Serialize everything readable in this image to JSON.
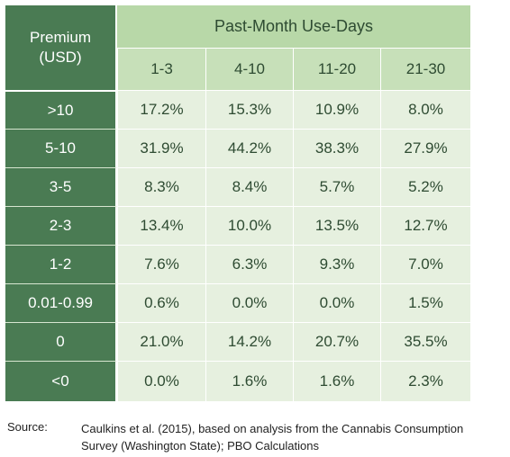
{
  "table": {
    "corner_line1": "Premium",
    "corner_line2": "(USD)",
    "group_header": "Past-Month Use-Days",
    "columns": [
      "1-3",
      "4-10",
      "11-20",
      "21-30"
    ],
    "rows": [
      {
        "label": ">10",
        "values": [
          "17.2%",
          "15.3%",
          "10.9%",
          "8.0%"
        ]
      },
      {
        "label": "5-10",
        "values": [
          "31.9%",
          "44.2%",
          "38.3%",
          "27.9%"
        ]
      },
      {
        "label": "3-5",
        "values": [
          "8.3%",
          "8.4%",
          "5.7%",
          "5.2%"
        ]
      },
      {
        "label": "2-3",
        "values": [
          "13.4%",
          "10.0%",
          "13.5%",
          "12.7%"
        ]
      },
      {
        "label": "1-2",
        "values": [
          "7.6%",
          "6.3%",
          "9.3%",
          "7.0%"
        ]
      },
      {
        "label": "0.01-0.99",
        "values": [
          "0.6%",
          "0.0%",
          "0.0%",
          "1.5%"
        ]
      },
      {
        "label": "0",
        "values": [
          "21.0%",
          "14.2%",
          "20.7%",
          "35.5%"
        ]
      },
      {
        "label": "<0",
        "values": [
          "0.0%",
          "1.6%",
          "1.6%",
          "2.3%"
        ]
      }
    ]
  },
  "source": {
    "label": "Source:",
    "line1": "Caulkins et al. (2015), based on analysis from the Cannabis Consumption",
    "line2": "Survey (Washington State); PBO Calculations"
  },
  "colors": {
    "row_header_bg": "#4a7b53",
    "group_header_bg": "#b8d8a8",
    "subheader_bg": "#c7e0b9",
    "cell_bg": "#e6f0df"
  }
}
